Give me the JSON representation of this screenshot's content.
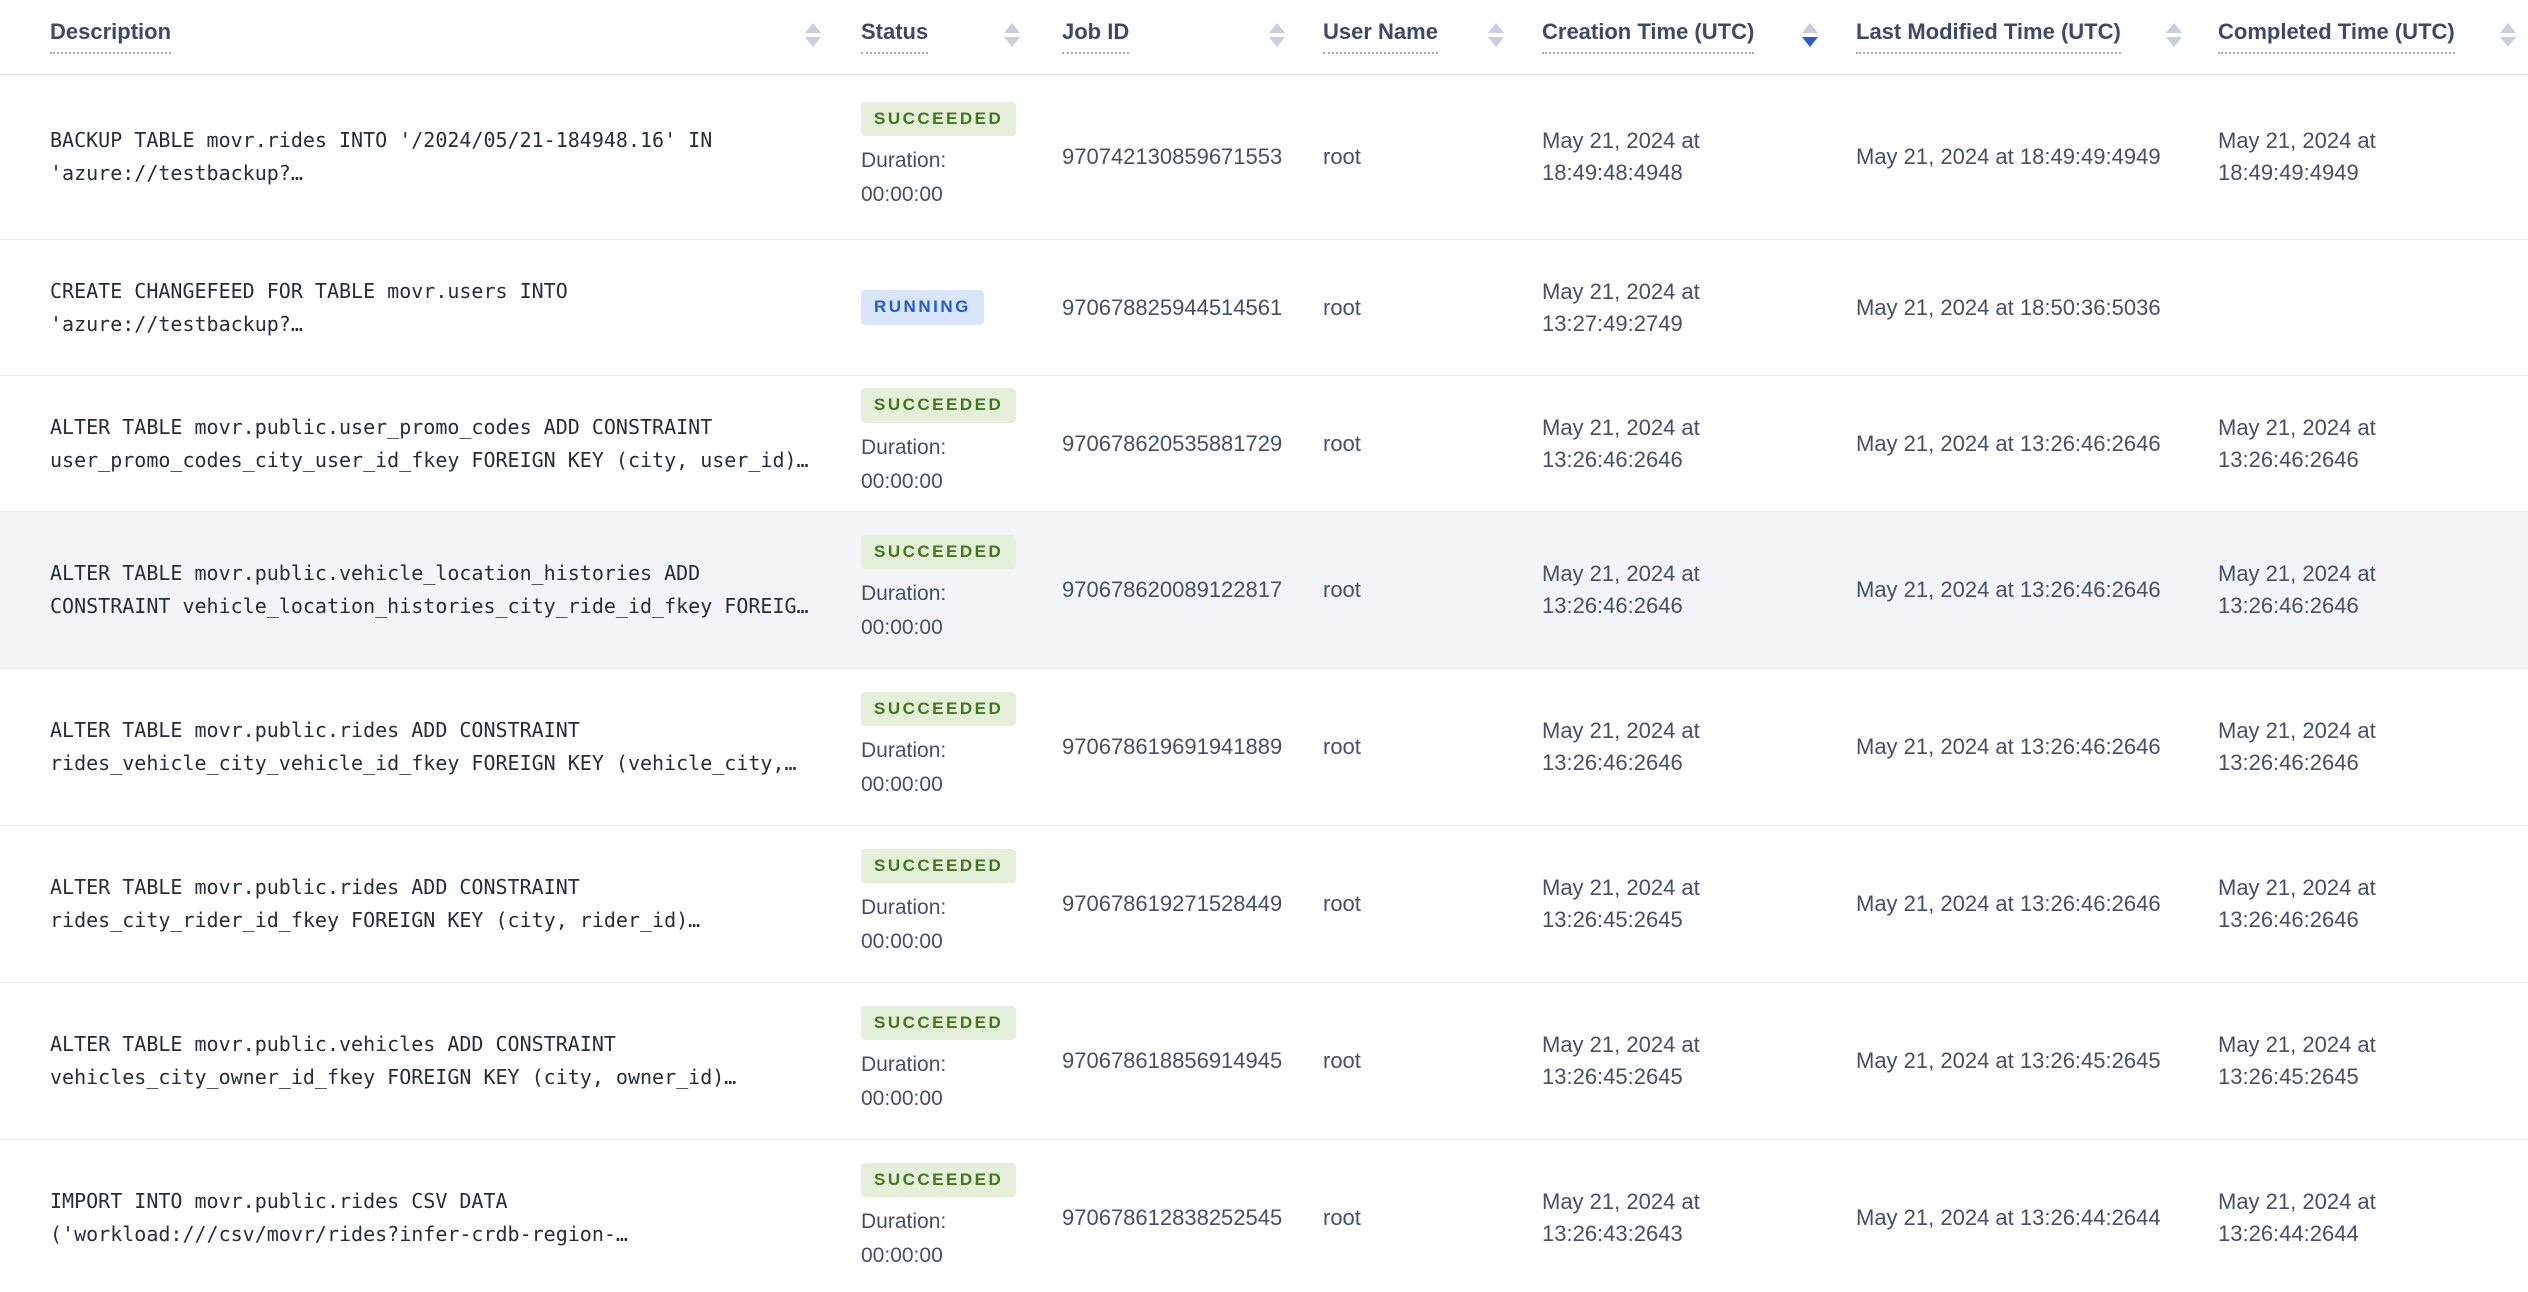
{
  "table": {
    "columns": [
      {
        "label": "Description",
        "sort": "none"
      },
      {
        "label": "Status",
        "sort": "none"
      },
      {
        "label": "Job ID",
        "sort": "none"
      },
      {
        "label": "User Name",
        "sort": "none"
      },
      {
        "label": "Creation Time (UTC)",
        "sort": "desc"
      },
      {
        "label": "Last Modified Time (UTC)",
        "sort": "none"
      },
      {
        "label": "Completed Time (UTC)",
        "sort": "none"
      }
    ],
    "rows": [
      {
        "description_line1": "BACKUP TABLE movr.rides INTO '/2024/05/21-184948.16' IN",
        "description_line2": "'azure://testbackup?…",
        "status": "SUCCEEDED",
        "duration_label": "Duration:",
        "duration": "00:00:00",
        "job_id": "970742130859671553",
        "user_name": "root",
        "created_line1": "May 21, 2024 at",
        "created_line2": "18:49:48:4948",
        "last_modified": "May 21, 2024 at 18:49:49:4949",
        "completed_line1": "May 21, 2024 at",
        "completed_line2": "18:49:49:4949",
        "highlighted": false
      },
      {
        "description_line1": "CREATE CHANGEFEED FOR TABLE movr.users INTO",
        "description_line2": "'azure://testbackup?…",
        "status": "RUNNING",
        "duration_label": null,
        "duration": null,
        "job_id": "970678825944514561",
        "user_name": "root",
        "created_line1": "May 21, 2024 at",
        "created_line2": "13:27:49:2749",
        "last_modified": "May 21, 2024 at 18:50:36:5036",
        "completed_line1": null,
        "completed_line2": null,
        "highlighted": false
      },
      {
        "description_line1": "ALTER TABLE movr.public.user_promo_codes ADD CONSTRAINT",
        "description_line2": "user_promo_codes_city_user_id_fkey FOREIGN KEY (city, user_id)…",
        "status": "SUCCEEDED",
        "duration_label": "Duration:",
        "duration": "00:00:00",
        "job_id": "970678620535881729",
        "user_name": "root",
        "created_line1": "May 21, 2024 at",
        "created_line2": "13:26:46:2646",
        "last_modified": "May 21, 2024 at 13:26:46:2646",
        "completed_line1": "May 21, 2024 at",
        "completed_line2": "13:26:46:2646",
        "highlighted": false
      },
      {
        "description_line1": "ALTER TABLE movr.public.vehicle_location_histories ADD",
        "description_line2": "CONSTRAINT vehicle_location_histories_city_ride_id_fkey FOREIG…",
        "status": "SUCCEEDED",
        "duration_label": "Duration:",
        "duration": "00:00:00",
        "job_id": "970678620089122817",
        "user_name": "root",
        "created_line1": "May 21, 2024 at",
        "created_line2": "13:26:46:2646",
        "last_modified": "May 21, 2024 at 13:26:46:2646",
        "completed_line1": "May 21, 2024 at",
        "completed_line2": "13:26:46:2646",
        "highlighted": true
      },
      {
        "description_line1": "ALTER TABLE movr.public.rides ADD CONSTRAINT",
        "description_line2": "rides_vehicle_city_vehicle_id_fkey FOREIGN KEY (vehicle_city,…",
        "status": "SUCCEEDED",
        "duration_label": "Duration:",
        "duration": "00:00:00",
        "job_id": "970678619691941889",
        "user_name": "root",
        "created_line1": "May 21, 2024 at",
        "created_line2": "13:26:46:2646",
        "last_modified": "May 21, 2024 at 13:26:46:2646",
        "completed_line1": "May 21, 2024 at",
        "completed_line2": "13:26:46:2646",
        "highlighted": false
      },
      {
        "description_line1": "ALTER TABLE movr.public.rides ADD CONSTRAINT",
        "description_line2": "rides_city_rider_id_fkey FOREIGN KEY (city, rider_id)…",
        "status": "SUCCEEDED",
        "duration_label": "Duration:",
        "duration": "00:00:00",
        "job_id": "970678619271528449",
        "user_name": "root",
        "created_line1": "May 21, 2024 at",
        "created_line2": "13:26:45:2645",
        "last_modified": "May 21, 2024 at 13:26:46:2646",
        "completed_line1": "May 21, 2024 at",
        "completed_line2": "13:26:46:2646",
        "highlighted": false
      },
      {
        "description_line1": "ALTER TABLE movr.public.vehicles ADD CONSTRAINT",
        "description_line2": "vehicles_city_owner_id_fkey FOREIGN KEY (city, owner_id)…",
        "status": "SUCCEEDED",
        "duration_label": "Duration:",
        "duration": "00:00:00",
        "job_id": "970678618856914945",
        "user_name": "root",
        "created_line1": "May 21, 2024 at",
        "created_line2": "13:26:45:2645",
        "last_modified": "May 21, 2024 at 13:26:45:2645",
        "completed_line1": "May 21, 2024 at",
        "completed_line2": "13:26:45:2645",
        "highlighted": false
      },
      {
        "description_line1": "IMPORT INTO movr.public.rides CSV DATA",
        "description_line2": "('workload:///csv/movr/rides?infer-crdb-region-…",
        "status": "SUCCEEDED",
        "duration_label": "Duration:",
        "duration": "00:00:00",
        "job_id": "970678612838252545",
        "user_name": "root",
        "created_line1": "May 21, 2024 at",
        "created_line2": "13:26:43:2643",
        "last_modified": "May 21, 2024 at 13:26:44:2644",
        "completed_line1": "May 21, 2024 at",
        "completed_line2": "13:26:44:2644",
        "highlighted": false
      }
    ]
  },
  "colors": {
    "succeeded_bg": "#e4f0d9",
    "succeeded_text": "#44761a",
    "running_bg": "#d9e5fb",
    "running_text": "#2659d6",
    "sort_active": "#2d5bd7",
    "header_text": "#3b4a68",
    "body_text": "#44506a",
    "row_highlight_bg": "#f4f5f9"
  }
}
